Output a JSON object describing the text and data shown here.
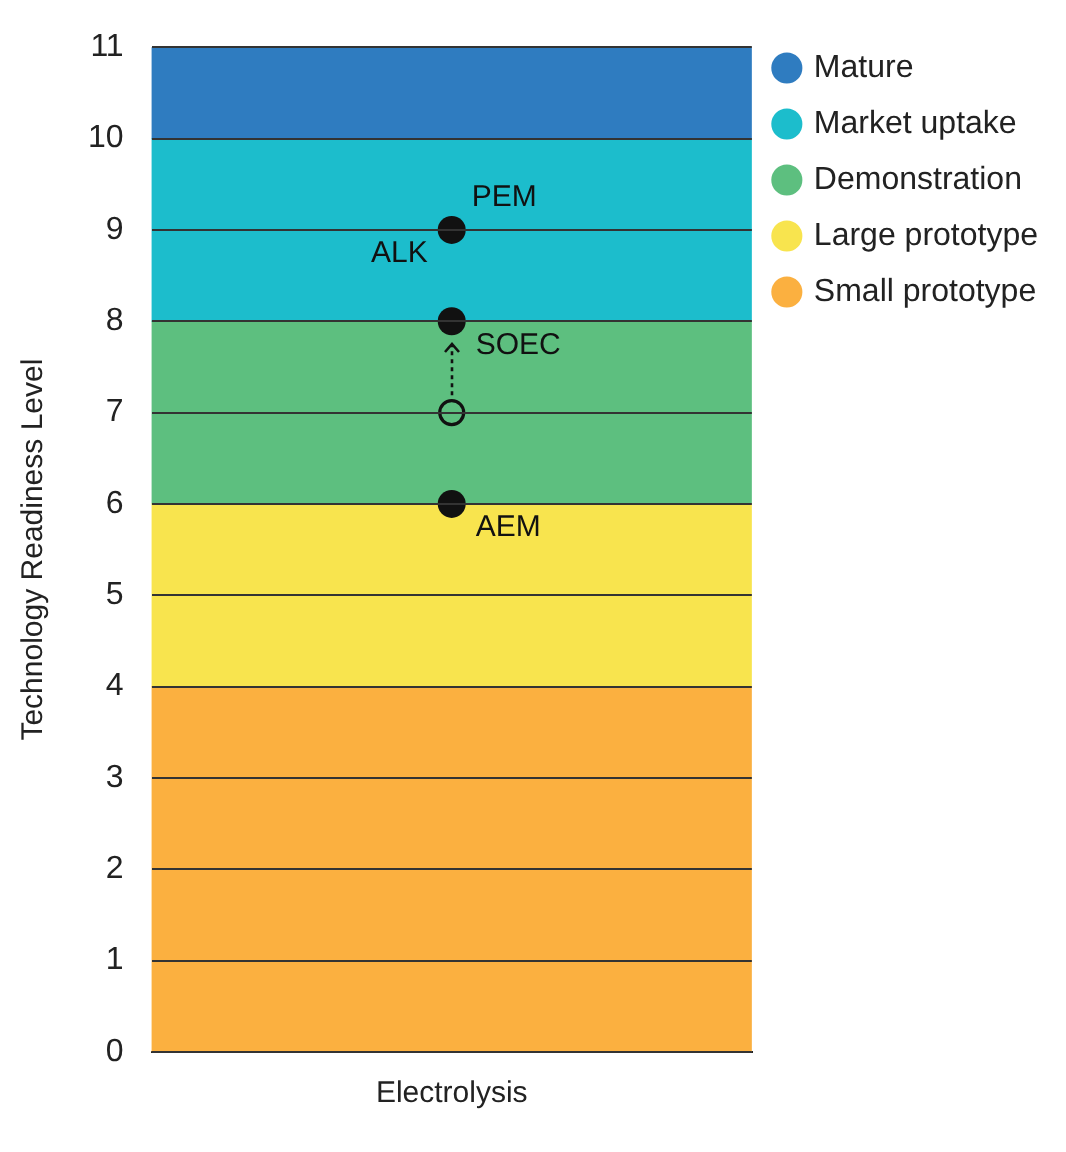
{
  "chart_data": {
    "type": "bar",
    "stacked": true,
    "categories": [
      "Electrolysis"
    ],
    "ylabel": "Technology Readiness Level",
    "ylim": [
      0,
      11
    ],
    "yticks": [
      0,
      1,
      2,
      3,
      4,
      5,
      6,
      7,
      8,
      9,
      10,
      11
    ],
    "grid": "y",
    "legend": "top right",
    "series": [
      {
        "name": "Small prototype",
        "color": "#fbb040",
        "values": [
          4
        ]
      },
      {
        "name": "Large prototype",
        "color": "#f8e44e",
        "values": [
          2
        ]
      },
      {
        "name": "Demonstration",
        "color": "#5dbf7f",
        "values": [
          2
        ]
      },
      {
        "name": "Market uptake",
        "color": "#1cbdcc",
        "values": [
          2
        ]
      },
      {
        "name": "Mature",
        "color": "#2f7cc0",
        "values": [
          1
        ]
      },
      {
        "type": "scatter",
        "color": "#111111",
        "marker": "circle",
        "x": [
          "Electrolysis",
          "Electrolysis",
          "Electrolysis"
        ],
        "values": [
          9,
          8,
          6
        ]
      },
      {
        "type": "scatter",
        "color": "#111111",
        "marker": "circle",
        "x": [
          "Electrolysis"
        ],
        "values": [
          7
        ]
      }
    ],
    "annotations": [
      {
        "text": "PEM",
        "x": "Electrolysis",
        "y": 9
      },
      {
        "text": "ALK",
        "x": "Electrolysis",
        "y": 9
      },
      {
        "text": "SOEC",
        "x": "Electrolysis",
        "y": 8
      },
      {
        "text": "AEM",
        "x": "Electrolysis",
        "y": 6
      }
    ]
  }
}
